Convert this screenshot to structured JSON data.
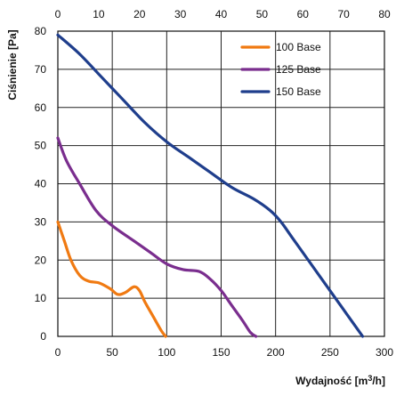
{
  "chart_data": {
    "type": "line",
    "ylabel": "Ciśnienie [Pa]",
    "xlabel": "Wydajność [m³/h]",
    "x_bottom": {
      "range": [
        0,
        300
      ],
      "ticks": [
        0,
        50,
        100,
        150,
        200,
        250,
        300
      ]
    },
    "x_top": {
      "range": [
        0,
        80
      ],
      "ticks": [
        0,
        10,
        20,
        30,
        40,
        50,
        60,
        70,
        80
      ]
    },
    "y": {
      "range": [
        0,
        80
      ],
      "ticks": [
        0,
        10,
        20,
        30,
        40,
        50,
        60,
        70,
        80
      ]
    },
    "grid": true,
    "legend_position": "top-right",
    "series": [
      {
        "name": "100 Base",
        "color": "#f07a12",
        "points": [
          [
            0,
            30
          ],
          [
            6,
            25
          ],
          [
            12,
            20
          ],
          [
            20,
            16
          ],
          [
            28,
            14.5
          ],
          [
            38,
            14
          ],
          [
            48,
            12.5
          ],
          [
            55,
            11
          ],
          [
            62,
            11.5
          ],
          [
            70,
            13
          ],
          [
            75,
            12
          ],
          [
            80,
            9
          ],
          [
            88,
            5
          ],
          [
            95,
            1.5
          ],
          [
            99,
            0
          ]
        ]
      },
      {
        "name": "125 Base",
        "color": "#7a2e8e",
        "points": [
          [
            0,
            52
          ],
          [
            8,
            46
          ],
          [
            20,
            40
          ],
          [
            35,
            33
          ],
          [
            50,
            29
          ],
          [
            70,
            25
          ],
          [
            85,
            22
          ],
          [
            100,
            19
          ],
          [
            115,
            17.5
          ],
          [
            130,
            17
          ],
          [
            140,
            15
          ],
          [
            150,
            12
          ],
          [
            160,
            8
          ],
          [
            170,
            4
          ],
          [
            177,
            1
          ],
          [
            182,
            0
          ]
        ]
      },
      {
        "name": "150 Base",
        "color": "#1f3e8c",
        "points": [
          [
            0,
            79
          ],
          [
            20,
            74
          ],
          [
            40,
            68
          ],
          [
            60,
            62
          ],
          [
            80,
            56
          ],
          [
            100,
            51
          ],
          [
            120,
            47
          ],
          [
            140,
            43
          ],
          [
            160,
            39
          ],
          [
            180,
            36
          ],
          [
            195,
            33
          ],
          [
            205,
            30
          ],
          [
            215,
            26
          ],
          [
            230,
            20
          ],
          [
            250,
            12
          ],
          [
            265,
            6
          ],
          [
            275,
            2
          ],
          [
            280,
            0
          ]
        ]
      }
    ]
  }
}
